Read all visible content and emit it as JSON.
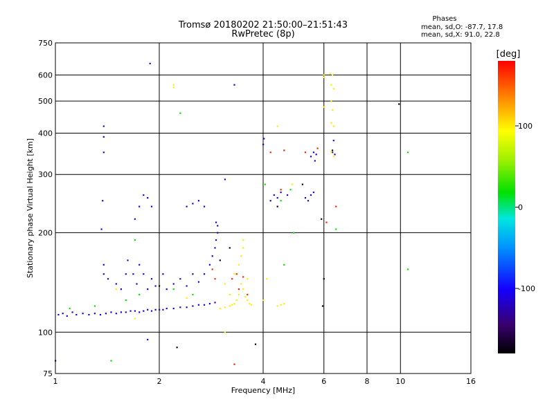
{
  "chart_data": {
    "type": "scatter",
    "title": "Tromsø 20180202 21:50:00–21:51:43",
    "subtitle": "RwPretec (8p)",
    "xlabel": "Frequency [MHz]",
    "ylabel": "Stationary phase Virtual Height [km]",
    "x_scale": "log",
    "y_scale": "log",
    "xlim": [
      1,
      16
    ],
    "ylim": [
      75,
      750
    ],
    "x_ticks": [
      1,
      2,
      4,
      6,
      8,
      10,
      16
    ],
    "y_ticks": [
      75,
      100,
      200,
      300,
      400,
      500,
      600,
      750
    ],
    "grid": true,
    "stats": {
      "heading": "Phases",
      "o_line": "mean, sd,O: -87.7, 17.8",
      "x_line": "mean, sd,X:  91.0, 22.8"
    },
    "colorbar": {
      "label": "[deg]",
      "range": [
        -180,
        180
      ],
      "ticks": [
        100,
        0,
        -100
      ],
      "colormap": "rainbow"
    },
    "series": [
      {
        "color_value": -110,
        "points": [
          [
            1.02,
            113
          ],
          [
            1.05,
            114
          ],
          [
            1.08,
            112
          ],
          [
            1.12,
            115
          ],
          [
            1.15,
            113
          ],
          [
            1.2,
            114
          ],
          [
            1.25,
            113
          ],
          [
            1.3,
            114
          ],
          [
            1.35,
            113
          ],
          [
            1.4,
            114
          ],
          [
            1.45,
            115
          ],
          [
            1.5,
            114
          ],
          [
            1.55,
            115
          ],
          [
            1.6,
            115
          ],
          [
            1.65,
            116
          ],
          [
            1.7,
            116
          ],
          [
            1.75,
            115
          ],
          [
            1.8,
            116
          ],
          [
            1.85,
            117
          ],
          [
            1.9,
            116
          ],
          [
            1.95,
            117
          ],
          [
            2.0,
            117
          ],
          [
            2.05,
            117
          ],
          [
            2.1,
            118
          ],
          [
            2.2,
            118
          ],
          [
            2.3,
            119
          ],
          [
            2.4,
            119
          ],
          [
            2.5,
            120
          ],
          [
            2.6,
            121
          ],
          [
            2.7,
            121
          ],
          [
            2.8,
            122
          ],
          [
            2.9,
            123
          ],
          [
            1.38,
            150
          ],
          [
            1.38,
            160
          ],
          [
            1.42,
            145
          ],
          [
            1.5,
            140
          ],
          [
            1.55,
            135
          ],
          [
            1.6,
            150
          ],
          [
            1.62,
            165
          ],
          [
            1.68,
            150
          ],
          [
            1.72,
            140
          ],
          [
            1.75,
            160
          ],
          [
            1.8,
            150
          ],
          [
            1.85,
            135
          ],
          [
            1.9,
            145
          ],
          [
            1.95,
            138
          ],
          [
            2.05,
            150
          ],
          [
            2.1,
            135
          ],
          [
            2.2,
            140
          ],
          [
            2.3,
            145
          ],
          [
            2.4,
            138
          ],
          [
            2.5,
            150
          ],
          [
            2.6,
            142
          ],
          [
            2.7,
            150
          ],
          [
            2.8,
            160
          ],
          [
            2.85,
            170
          ],
          [
            2.9,
            180
          ],
          [
            2.92,
            190
          ],
          [
            2.95,
            200
          ],
          [
            2.95,
            210
          ],
          [
            2.92,
            215
          ],
          [
            1.38,
            420
          ],
          [
            1.38,
            390
          ],
          [
            1.38,
            350
          ],
          [
            1.37,
            250
          ],
          [
            1.36,
            205
          ],
          [
            1.7,
            220
          ],
          [
            1.75,
            240
          ],
          [
            1.8,
            260
          ],
          [
            1.85,
            255
          ],
          [
            1.9,
            240
          ],
          [
            2.4,
            240
          ],
          [
            2.5,
            245
          ],
          [
            2.6,
            250
          ],
          [
            2.7,
            240
          ],
          [
            4.2,
            250
          ],
          [
            4.3,
            260
          ],
          [
            4.4,
            255
          ],
          [
            4.5,
            265
          ],
          [
            4.7,
            260
          ],
          [
            5.3,
            255
          ],
          [
            5.4,
            250
          ],
          [
            5.5,
            260
          ],
          [
            5.6,
            265
          ],
          [
            5.5,
            340
          ],
          [
            5.6,
            350
          ],
          [
            5.7,
            345
          ],
          [
            5.65,
            330
          ],
          [
            4.0,
            370
          ],
          [
            4.02,
            385
          ],
          [
            6.35,
            350
          ],
          [
            6.4,
            380
          ],
          [
            6.45,
            345
          ],
          [
            3.3,
            560
          ],
          [
            1.88,
            650
          ],
          [
            1.0,
            82
          ],
          [
            3.1,
            290
          ],
          [
            1.85,
            95
          ]
        ]
      },
      {
        "color_value": 20,
        "points": [
          [
            1.1,
            118
          ],
          [
            1.3,
            120
          ],
          [
            1.6,
            125
          ],
          [
            1.75,
            130
          ],
          [
            2.2,
            135
          ],
          [
            2.5,
            130
          ],
          [
            4.8,
            270
          ],
          [
            4.5,
            250
          ],
          [
            1.45,
            82
          ],
          [
            10.5,
            350
          ],
          [
            10.5,
            155
          ],
          [
            4.9,
            200
          ],
          [
            4.6,
            160
          ],
          [
            6.5,
            205
          ],
          [
            2.3,
            460
          ],
          [
            1.7,
            190
          ],
          [
            4.05,
            280
          ]
        ]
      },
      {
        "color_value": 100,
        "points": [
          [
            3.0,
            118
          ],
          [
            3.1,
            119
          ],
          [
            3.2,
            120
          ],
          [
            3.25,
            121
          ],
          [
            3.3,
            122
          ],
          [
            3.35,
            125
          ],
          [
            3.4,
            130
          ],
          [
            3.45,
            140
          ],
          [
            3.5,
            135
          ],
          [
            3.55,
            128
          ],
          [
            3.6,
            125
          ],
          [
            3.65,
            122
          ],
          [
            3.7,
            121
          ],
          [
            3.4,
            160
          ],
          [
            3.45,
            170
          ],
          [
            3.5,
            180
          ],
          [
            3.5,
            190
          ],
          [
            3.3,
            150
          ],
          [
            3.6,
            145
          ],
          [
            3.2,
            130
          ],
          [
            3.1,
            140
          ],
          [
            4.0,
            125
          ],
          [
            4.4,
            120
          ],
          [
            4.5,
            121
          ],
          [
            4.6,
            122
          ],
          [
            6.0,
            590
          ],
          [
            6.0,
            600
          ],
          [
            6.25,
            605
          ],
          [
            6.35,
            600
          ],
          [
            6.3,
            560
          ],
          [
            6.3,
            500
          ],
          [
            6.35,
            470
          ],
          [
            6.3,
            430
          ],
          [
            6.4,
            420
          ],
          [
            6.3,
            350
          ],
          [
            6.4,
            340
          ],
          [
            2.2,
            550
          ],
          [
            2.2,
            560
          ],
          [
            4.85,
            280
          ],
          [
            3.1,
            100
          ],
          [
            4.1,
            145
          ],
          [
            4.4,
            420
          ],
          [
            1.5,
            135
          ],
          [
            2.4,
            127
          ],
          [
            1.7,
            110
          ],
          [
            6.0,
            480
          ],
          [
            6.4,
            545
          ]
        ]
      },
      {
        "color_value": 170,
        "points": [
          [
            3.25,
            145
          ],
          [
            3.4,
            135
          ],
          [
            3.6,
            130
          ],
          [
            4.2,
            350
          ],
          [
            4.6,
            355
          ],
          [
            6.5,
            240
          ],
          [
            6.1,
            215
          ],
          [
            3.3,
            80
          ],
          [
            3.5,
            147
          ],
          [
            3.35,
            150
          ],
          [
            2.85,
            155
          ],
          [
            5.3,
            350
          ],
          [
            5.75,
            360
          ],
          [
            4.5,
            270
          ],
          [
            2.9,
            145
          ]
        ]
      },
      {
        "color_value": -175,
        "points": [
          [
            5.95,
            120
          ],
          [
            6.0,
            145
          ],
          [
            9.9,
            490
          ],
          [
            2.25,
            90
          ],
          [
            3.8,
            92
          ],
          [
            3.0,
            165
          ],
          [
            3.2,
            180
          ],
          [
            4.4,
            240
          ],
          [
            5.2,
            280
          ],
          [
            5.9,
            220
          ],
          [
            6.35,
            355
          ],
          [
            2.0,
            138
          ]
        ]
      }
    ]
  }
}
